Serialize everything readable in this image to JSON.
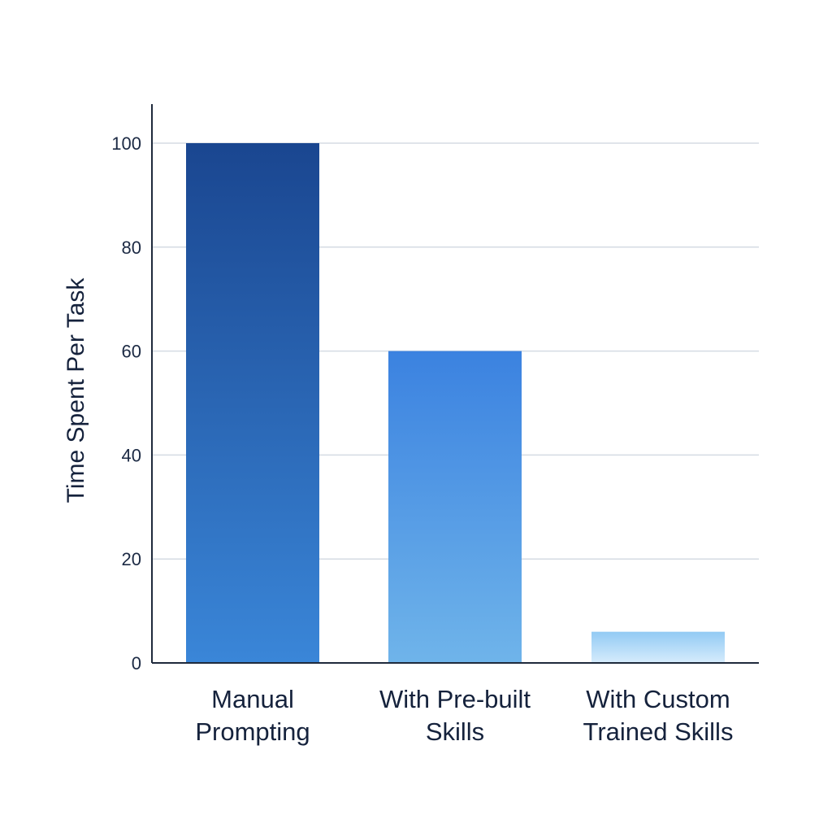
{
  "chart_data": {
    "type": "bar",
    "title": "",
    "xlabel": "",
    "ylabel": "Time Spent Per Task",
    "categories": [
      [
        "Manual",
        "Prompting"
      ],
      [
        "With Pre-built",
        "Skills"
      ],
      [
        "With Custom",
        "Trained Skills"
      ]
    ],
    "values": [
      100,
      60,
      6
    ],
    "ylim": [
      0,
      100
    ],
    "yticks": [
      0,
      20,
      40,
      60,
      80,
      100
    ],
    "grid": true,
    "legend": "none",
    "colors": {
      "bar_gradients": [
        [
          "#1a4690",
          "#3a86d8"
        ],
        [
          "#3b82e0",
          "#6fb4ea"
        ],
        [
          "#92caf4",
          "#d6ecfc"
        ]
      ],
      "grid": "#d5dbe3",
      "axis": "#1f2a3c",
      "text": "#15223c"
    }
  }
}
